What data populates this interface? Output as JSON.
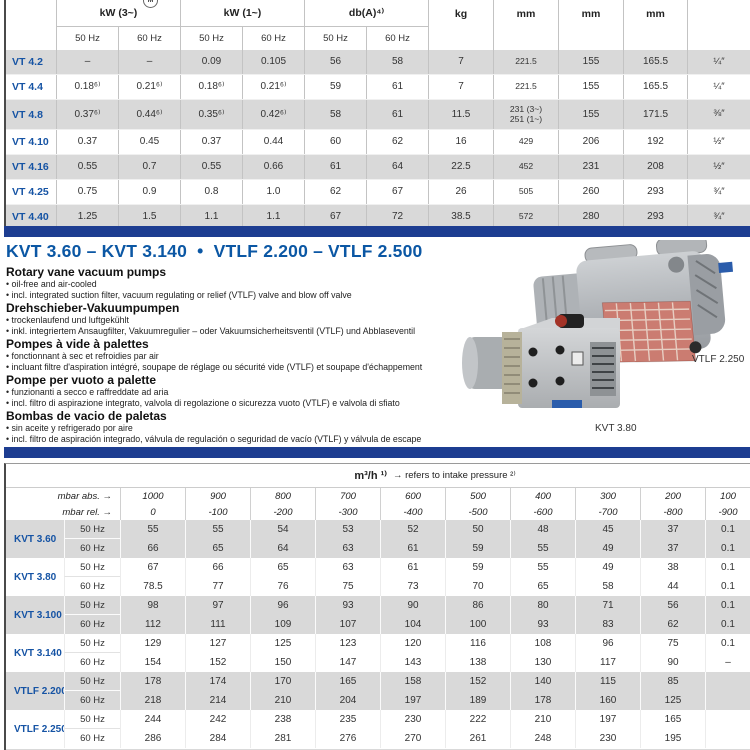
{
  "colors": {
    "navy_bar": "#1d3d91",
    "heading_blue": "#0b57a4",
    "label_blue": "#1553a4",
    "row_gray": "#d9d9d9",
    "grille_red": "#b84a3a"
  },
  "table1": {
    "motor_symbol": "M",
    "col_groups": [
      {
        "label": "kW (3~)"
      },
      {
        "label": "kW (1~)"
      },
      {
        "label": "db(A)⁴⁾"
      }
    ],
    "hz_labels": [
      "50 Hz",
      "60 Hz",
      "50 Hz",
      "60 Hz",
      "50 Hz",
      "60 Hz"
    ],
    "unit_cols": [
      "kg",
      "mm",
      "mm",
      "mm",
      ""
    ],
    "rows": [
      {
        "label": "VT 4.2",
        "cells": [
          "–",
          "–",
          "0.09",
          "0.105",
          "56",
          "58",
          "7",
          "221.5",
          "155",
          "165.5",
          "¼″"
        ]
      },
      {
        "label": "VT 4.4",
        "cells": [
          "0.18⁶⁾",
          "0.21⁶⁾",
          "0.18⁶⁾",
          "0.21⁶⁾",
          "59",
          "61",
          "7",
          "221.5",
          "155",
          "165.5",
          "¼″"
        ]
      },
      {
        "label": "VT 4.8",
        "cells": [
          "0.37⁶⁾",
          "0.44⁶⁾",
          "0.35⁶⁾",
          "0.42⁶⁾",
          "58",
          "61",
          "11.5",
          "231 (3~)\n251 (1~)",
          "155",
          "171.5",
          "⅜″"
        ]
      },
      {
        "label": "VT 4.10",
        "cells": [
          "0.37",
          "0.45",
          "0.37",
          "0.44",
          "60",
          "62",
          "16",
          "429",
          "206",
          "192",
          "½″"
        ]
      },
      {
        "label": "VT 4.16",
        "cells": [
          "0.55",
          "0.7",
          "0.55",
          "0.66",
          "61",
          "64",
          "22.5",
          "452",
          "231",
          "208",
          "½″"
        ]
      },
      {
        "label": "VT 4.25",
        "cells": [
          "0.75",
          "0.9",
          "0.8",
          "1.0",
          "62",
          "67",
          "26",
          "505",
          "260",
          "293",
          "¾″"
        ]
      },
      {
        "label": "VT 4.40",
        "cells": [
          "1.25",
          "1.5",
          "1.1",
          "1.1",
          "67",
          "72",
          "38.5",
          "572",
          "280",
          "293",
          "¾″"
        ]
      }
    ]
  },
  "section": {
    "heading": "KVT 3.60 – KVT 3.140  •  VTLF 2.200 – VTLF 2.500",
    "descriptions": [
      {
        "title": "Rotary vane vacuum pumps",
        "bullets": [
          "oil-free and air-cooled",
          "incl. integrated suction filter, vacuum regulating or relief (VTLF) valve and blow off valve"
        ]
      },
      {
        "title": "Drehschieber-Vakuumpumpen",
        "bullets": [
          "trockenlaufend und luftgekühlt",
          "inkl. integriertem Ansaugfilter, Vakuumregulier – oder Vakuumsicherheitsventil (VTLF) und Abblaseventil"
        ]
      },
      {
        "title": "Pompes à vide à palettes",
        "bullets": [
          "fonctionnant à sec et refroidies par air",
          "incluant filtre d'aspiration intégré, soupape de réglage ou sécurité vide (VTLF) et soupape d'échappement"
        ]
      },
      {
        "title": "Pompe per vuoto a palette",
        "bullets": [
          "funzionanti a secco e raffreddate ad aria",
          "incl. filtro di aspirazione integrato, valvola di regolazione o sicurezza vuoto (VTLF) e valvola di sfiato"
        ]
      },
      {
        "title": "Bombas de vacio de paletas",
        "bullets": [
          "sin aceite y refrigerado por aire",
          "incl. filtro de aspiración integrado, válvula de regulación o seguridad de vacío (VTLF) y válvula de escape"
        ]
      }
    ],
    "product_labels": {
      "big_pump": "VTLF 2.250",
      "small_pump": "KVT 3.80"
    }
  },
  "table2": {
    "flow_header": "m³/h ¹⁾",
    "flow_note": "→ refers to intake pressure ²⁾",
    "mbar_abs_label": "mbar abs. →",
    "mbar_rel_label": "mbar rel. →",
    "mbar_abs": [
      "1000",
      "900",
      "800",
      "700",
      "600",
      "500",
      "400",
      "300",
      "200",
      "100"
    ],
    "mbar_rel": [
      "0",
      "-100",
      "-200",
      "-300",
      "-400",
      "-500",
      "-600",
      "-700",
      "-800",
      "-900"
    ],
    "hz50_label": "50 Hz",
    "hz60_label": "60 Hz",
    "groups": [
      {
        "name": "KVT 3.60",
        "hz50": [
          "55",
          "55",
          "54",
          "53",
          "52",
          "50",
          "48",
          "45",
          "37",
          "0.1"
        ],
        "hz60": [
          "66",
          "65",
          "64",
          "63",
          "61",
          "59",
          "55",
          "49",
          "37",
          "0.1"
        ]
      },
      {
        "name": "KVT 3.80",
        "hz50": [
          "67",
          "66",
          "65",
          "63",
          "61",
          "59",
          "55",
          "49",
          "38",
          "0.1"
        ],
        "hz60": [
          "78.5",
          "77",
          "76",
          "75",
          "73",
          "70",
          "65",
          "58",
          "44",
          "0.1"
        ]
      },
      {
        "name": "KVT 3.100",
        "hz50": [
          "98",
          "97",
          "96",
          "93",
          "90",
          "86",
          "80",
          "71",
          "56",
          "0.1"
        ],
        "hz60": [
          "112",
          "111",
          "109",
          "107",
          "104",
          "100",
          "93",
          "83",
          "62",
          "0.1"
        ]
      },
      {
        "name": "KVT 3.140",
        "hz50": [
          "129",
          "127",
          "125",
          "123",
          "120",
          "116",
          "108",
          "96",
          "75",
          "0.1"
        ],
        "hz60": [
          "154",
          "152",
          "150",
          "147",
          "143",
          "138",
          "130",
          "117",
          "90",
          "–"
        ]
      },
      {
        "name": "VTLF 2.200",
        "hz50": [
          "178",
          "174",
          "170",
          "165",
          "158",
          "152",
          "140",
          "115",
          "85",
          ""
        ],
        "hz60": [
          "218",
          "214",
          "210",
          "204",
          "197",
          "189",
          "178",
          "160",
          "125",
          ""
        ]
      },
      {
        "name": "VTLF 2.250",
        "hz50": [
          "244",
          "242",
          "238",
          "235",
          "230",
          "222",
          "210",
          "197",
          "165",
          ""
        ],
        "hz60": [
          "286",
          "284",
          "281",
          "276",
          "270",
          "261",
          "248",
          "230",
          "195",
          ""
        ]
      }
    ]
  }
}
